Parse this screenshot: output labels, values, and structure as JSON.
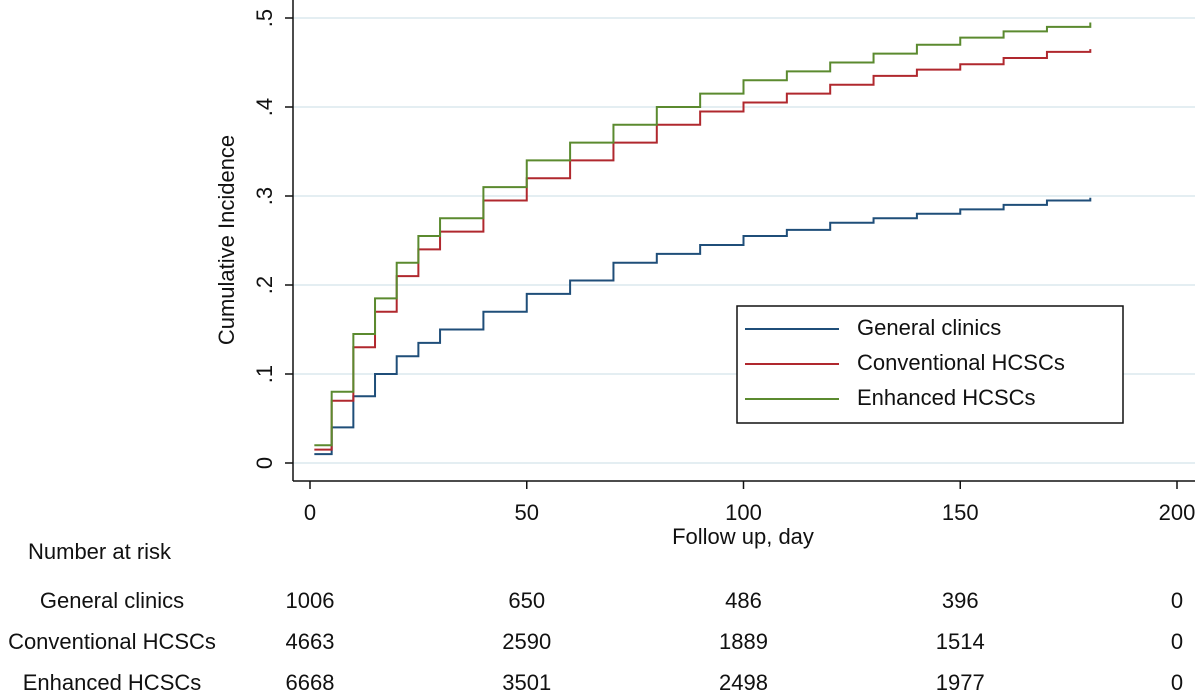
{
  "chart_data": {
    "type": "step",
    "xlabel": "Follow up, day",
    "ylabel": "Cumulative Incidence",
    "x": [
      1,
      5,
      10,
      15,
      20,
      25,
      30,
      40,
      50,
      60,
      70,
      80,
      90,
      100,
      110,
      120,
      130,
      140,
      150,
      160,
      170,
      180
    ],
    "series": [
      {
        "name": "General clinics",
        "color": "#1f4e79",
        "values": [
          0.01,
          0.04,
          0.075,
          0.1,
          0.12,
          0.135,
          0.15,
          0.17,
          0.19,
          0.205,
          0.225,
          0.235,
          0.245,
          0.255,
          0.262,
          0.27,
          0.275,
          0.28,
          0.285,
          0.29,
          0.295,
          0.298
        ]
      },
      {
        "name": "Conventional HCSCs",
        "color": "#b0282e",
        "values": [
          0.015,
          0.07,
          0.13,
          0.17,
          0.21,
          0.24,
          0.26,
          0.295,
          0.32,
          0.34,
          0.36,
          0.38,
          0.395,
          0.405,
          0.415,
          0.425,
          0.435,
          0.442,
          0.448,
          0.455,
          0.462,
          0.465
        ]
      },
      {
        "name": "Enhanced HCSCs",
        "color": "#5b8a2f",
        "values": [
          0.02,
          0.08,
          0.145,
          0.185,
          0.225,
          0.255,
          0.275,
          0.31,
          0.34,
          0.36,
          0.38,
          0.4,
          0.415,
          0.43,
          0.44,
          0.45,
          0.46,
          0.47,
          0.478,
          0.485,
          0.49,
          0.495
        ]
      }
    ],
    "xlim": [
      0,
      200
    ],
    "xticks": [
      0,
      50,
      100,
      150,
      200
    ],
    "ylim": [
      0,
      0.5
    ],
    "yticks": [
      0,
      {
        "value": 0.1,
        "label": ".1"
      },
      {
        "value": 0.2,
        "label": ".2"
      },
      {
        "value": 0.3,
        "label": ".3"
      },
      {
        "value": 0.4,
        "label": ".4"
      },
      {
        "value": 0.5,
        "label": ".5"
      }
    ],
    "grid": true,
    "legend": "center right",
    "risk_table": {
      "title": "Number at risk",
      "rows": [
        {
          "label": "General clinics",
          "counts": [
            1006,
            650,
            486,
            396,
            0
          ]
        },
        {
          "label": "Conventional HCSCs",
          "counts": [
            4663,
            2590,
            1889,
            1514,
            0
          ]
        },
        {
          "label": "Enhanced HCSCs",
          "counts": [
            6668,
            3501,
            2498,
            1977,
            0
          ]
        }
      ]
    }
  }
}
